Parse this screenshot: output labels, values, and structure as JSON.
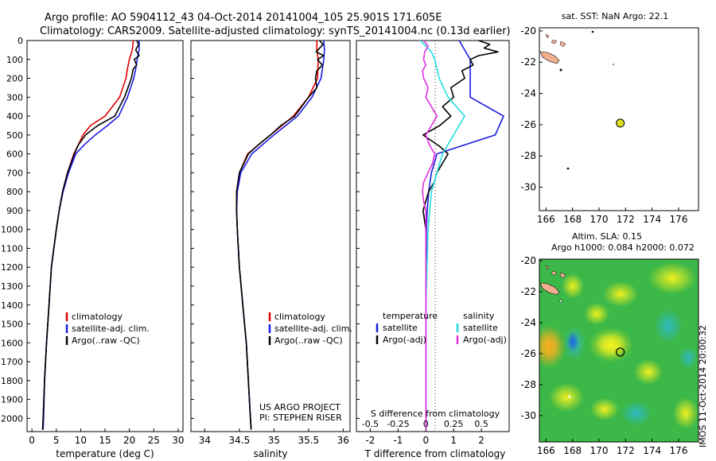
{
  "header": {
    "line1": "Argo profile: AO 5904112_43 04-Oct-2014 20141004_105 25.901S 171.605E",
    "line2": "Climatology: CARS2009. Satellite-adjusted climatology: synTS_20141004.nc (0.13d earlier)"
  },
  "colors": {
    "climatology": "#e00000",
    "satellite": "#1a1ae0",
    "argo": "#000000",
    "cyan": "#22dde0",
    "magenta": "#e030e0",
    "land": "#f0b090",
    "marker": "#d8e020"
  },
  "chart_data": [
    {
      "type": "line",
      "id": "temperature",
      "xlabel": "temperature (deg C)",
      "ylabel": "",
      "xlim": [
        -1,
        31
      ],
      "ylim": [
        2070,
        0
      ],
      "xticks": [
        "0",
        "5",
        "10",
        "15",
        "20",
        "25",
        "30"
      ],
      "xtick_values": [
        0,
        5,
        10,
        15,
        20,
        25,
        30
      ],
      "yticks": [
        "0",
        "100",
        "200",
        "300",
        "400",
        "500",
        "600",
        "700",
        "800",
        "900",
        "1000",
        "1100",
        "1200",
        "1300",
        "1400",
        "1500",
        "1600",
        "1700",
        "1800",
        "1900",
        "2000"
      ],
      "ytick_values": [
        0,
        100,
        200,
        300,
        400,
        500,
        600,
        700,
        800,
        900,
        1000,
        1100,
        1200,
        1300,
        1400,
        1500,
        1600,
        1700,
        1800,
        1900,
        2000
      ],
      "legend": [
        "climatology",
        "satellite-adj. clim.",
        "Argo(..raw -QC)"
      ],
      "series": [
        {
          "name": "climatology",
          "color": "#e00000",
          "depth": [
            0,
            50,
            100,
            150,
            200,
            300,
            400,
            450,
            500,
            600,
            700,
            800,
            900,
            1000,
            1200,
            1400,
            1600,
            1800,
            2000,
            2060
          ],
          "values": [
            20.8,
            20.6,
            20.0,
            19.6,
            19.3,
            18.0,
            15.0,
            12.0,
            10.5,
            8.6,
            7.3,
            6.3,
            5.6,
            5.0,
            4.0,
            3.5,
            3.0,
            2.6,
            2.3,
            2.2
          ]
        },
        {
          "name": "satellite-adj. clim.",
          "color": "#1a1ae0",
          "depth": [
            0,
            50,
            100,
            150,
            200,
            300,
            400,
            450,
            500,
            550,
            600,
            700,
            800,
            900,
            1000,
            1200,
            1400,
            1600,
            1800,
            2000,
            2060
          ],
          "values": [
            22.0,
            22.0,
            21.6,
            21.3,
            20.9,
            19.6,
            17.8,
            15.5,
            13.0,
            10.8,
            9.0,
            7.5,
            6.4,
            5.6,
            5.0,
            4.0,
            3.5,
            3.0,
            2.6,
            2.4,
            2.3
          ]
        },
        {
          "name": "Argo(..raw -QC)",
          "color": "#000000",
          "depth": [
            0,
            20,
            50,
            80,
            100,
            130,
            150,
            200,
            300,
            400,
            450,
            500,
            550,
            600,
            700,
            800,
            900,
            1000,
            1200,
            1400,
            1600,
            1800,
            2000,
            2060
          ],
          "values": [
            21.5,
            21.9,
            21.3,
            22.0,
            21.0,
            21.5,
            20.8,
            20.4,
            19.0,
            17.0,
            13.5,
            11.0,
            9.6,
            8.7,
            7.3,
            6.3,
            5.6,
            5.0,
            4.0,
            3.5,
            3.0,
            2.6,
            2.3,
            2.2
          ]
        }
      ]
    },
    {
      "type": "line",
      "id": "salinity",
      "xlabel": "salinity",
      "ylabel": "",
      "xlim": [
        33.8,
        36.1
      ],
      "ylim": [
        2070,
        0
      ],
      "xticks": [
        "34",
        "34.5",
        "35",
        "35.5",
        "36"
      ],
      "xtick_values": [
        34,
        34.5,
        35,
        35.5,
        36
      ],
      "legend": [
        "climatology",
        "satellite-adj. clim.",
        "Argo(..raw -QC)"
      ],
      "annotation": [
        "US ARGO PROJECT",
        "PI: STEPHEN RISER"
      ],
      "series": [
        {
          "name": "climatology",
          "color": "#e00000",
          "depth": [
            0,
            50,
            100,
            200,
            300,
            400,
            500,
            600,
            700,
            800,
            900,
            1000,
            1200,
            1400,
            1600,
            1800,
            2000,
            2060
          ],
          "values": [
            35.62,
            35.62,
            35.64,
            35.63,
            35.5,
            35.28,
            34.95,
            34.62,
            34.5,
            34.46,
            34.46,
            34.47,
            34.5,
            34.55,
            34.6,
            34.63,
            34.66,
            34.67
          ]
        },
        {
          "name": "satellite-adj. clim.",
          "color": "#1a1ae0",
          "depth": [
            0,
            50,
            100,
            200,
            300,
            400,
            500,
            600,
            700,
            800,
            900,
            1000,
            1200,
            1400,
            1600,
            1800,
            2000,
            2060
          ],
          "values": [
            35.72,
            35.73,
            35.72,
            35.68,
            35.55,
            35.34,
            35.0,
            34.68,
            34.52,
            34.47,
            34.46,
            34.47,
            34.5,
            34.55,
            34.6,
            34.63,
            34.66,
            34.67
          ]
        },
        {
          "name": "Argo(..raw -QC)",
          "color": "#000000",
          "depth": [
            0,
            20,
            60,
            80,
            100,
            130,
            160,
            200,
            250,
            300,
            400,
            450,
            500,
            550,
            600,
            700,
            800,
            900,
            1000,
            1200,
            1400,
            1600,
            1800,
            2000,
            2060
          ],
          "values": [
            35.66,
            35.71,
            35.61,
            35.72,
            35.63,
            35.7,
            35.62,
            35.6,
            35.62,
            35.5,
            35.3,
            35.1,
            34.95,
            34.78,
            34.63,
            34.5,
            34.46,
            34.46,
            34.47,
            34.5,
            34.55,
            34.6,
            34.63,
            34.66,
            34.67
          ]
        }
      ]
    },
    {
      "type": "line",
      "id": "difference",
      "xlabel": "T difference from climatology",
      "xlabel_top": "S difference from climatology",
      "xlim": [
        -2.5,
        3.0
      ],
      "ylim": [
        2070,
        0
      ],
      "xticks": [
        "-2",
        "-1",
        "0",
        "1",
        "2"
      ],
      "xtick_values": [
        -2,
        -1,
        0,
        1,
        2
      ],
      "xticks_top": [
        "-0.5",
        "-0.25",
        "0",
        "0.25",
        "0.5"
      ],
      "legend_left_title": "temperature",
      "legend_right_title": "salinity",
      "legend": [
        "satellite",
        "Argo(-adj)",
        "satellite",
        "Argo(-adj)"
      ],
      "series": [
        {
          "name": "T satellite",
          "color": "#1a1ae0",
          "depth": [
            0,
            50,
            100,
            200,
            300,
            400,
            500,
            600,
            700,
            800,
            900,
            1000,
            1200,
            1400,
            1600,
            1800,
            2000,
            2060
          ],
          "values": [
            1.2,
            1.4,
            1.6,
            1.6,
            1.6,
            2.8,
            2.5,
            0.4,
            0.2,
            0.1,
            0.05,
            0.02,
            0.01,
            0.0,
            0.0,
            0.0,
            0.0,
            0.0
          ]
        },
        {
          "name": "T Argo(-adj)",
          "color": "#000000",
          "depth": [
            0,
            20,
            40,
            60,
            80,
            100,
            130,
            160,
            200,
            250,
            300,
            350,
            400,
            450,
            500,
            530,
            560,
            600,
            650,
            700,
            750,
            800,
            850,
            900,
            1000,
            1200,
            1400,
            1600,
            1800,
            2000,
            2060
          ],
          "values": [
            1.9,
            2.3,
            2.1,
            2.6,
            1.9,
            1.6,
            1.7,
            1.3,
            1.4,
            0.9,
            1.0,
            0.6,
            0.9,
            0.5,
            -0.1,
            0.2,
            0.5,
            0.8,
            0.6,
            0.4,
            0.3,
            0.1,
            0.0,
            -0.1,
            0.0,
            0.0,
            0.0,
            0.0,
            0.0,
            0.0,
            0.0
          ]
        },
        {
          "name": "S satellite",
          "color": "#22dde0",
          "depth": [
            0,
            30,
            60,
            100,
            150,
            200,
            300,
            400,
            500,
            600,
            700,
            800,
            1000,
            1200,
            1400,
            1600,
            1800,
            2000,
            2060
          ],
          "values": [
            -0.05,
            0.0,
            0.05,
            0.08,
            0.1,
            0.12,
            0.2,
            0.35,
            0.25,
            0.15,
            0.1,
            0.05,
            0.02,
            0.01,
            0.0,
            0.0,
            0.0,
            0.0,
            0.0
          ]
        },
        {
          "name": "S Argo(-adj)",
          "color": "#e030e0",
          "depth": [
            0,
            30,
            60,
            100,
            130,
            160,
            200,
            250,
            300,
            350,
            400,
            450,
            500,
            550,
            600,
            650,
            700,
            750,
            800,
            850,
            900,
            1000,
            1200,
            1400,
            1600,
            1800,
            2000,
            2060
          ],
          "values": [
            -0.02,
            0.02,
            -0.01,
            -0.02,
            0.0,
            -0.03,
            -0.02,
            0.02,
            0.0,
            0.05,
            0.1,
            0.05,
            0.0,
            0.03,
            0.08,
            0.06,
            0.02,
            -0.02,
            -0.03,
            -0.02,
            0.0,
            0.0,
            0.0,
            0.0,
            0.0,
            0.0,
            0.0,
            0.0
          ]
        }
      ]
    },
    {
      "type": "scatter",
      "id": "sst-map",
      "title": "sat. SST: NaN Argo: 22.1",
      "xlim": [
        165.5,
        177.5
      ],
      "ylim": [
        -31.5,
        -19.8
      ],
      "xticks": [
        "166",
        "168",
        "170",
        "172",
        "174",
        "176"
      ],
      "xtick_values": [
        166,
        168,
        170,
        172,
        174,
        176
      ],
      "yticks": [
        "-20",
        "-22",
        "-24",
        "-26",
        "-28",
        "-30"
      ],
      "ytick_values": [
        -20,
        -22,
        -24,
        -26,
        -28,
        -30
      ],
      "point": {
        "lon": 171.6,
        "lat": -25.9
      }
    },
    {
      "type": "heatmap",
      "id": "sla-map",
      "title_line1": "Altim. SLA: 0.15",
      "title_line2": "Argo h1000: 0.084 h2000: 0.072",
      "xlim": [
        165.5,
        177.5
      ],
      "ylim": [
        -31.7,
        -19.9
      ],
      "xticks": [
        "166",
        "168",
        "170",
        "172",
        "174",
        "176"
      ],
      "xtick_values": [
        166,
        168,
        170,
        172,
        174,
        176
      ],
      "yticks": [
        "-20",
        "-22",
        "-24",
        "-26",
        "-28",
        "-30"
      ],
      "ytick_values": [
        -20,
        -22,
        -24,
        -26,
        -28,
        -30
      ],
      "point": {
        "lon": 171.6,
        "lat": -25.9
      }
    }
  ],
  "side_label": "IMOS 11-Oct-2014 20:00:32"
}
